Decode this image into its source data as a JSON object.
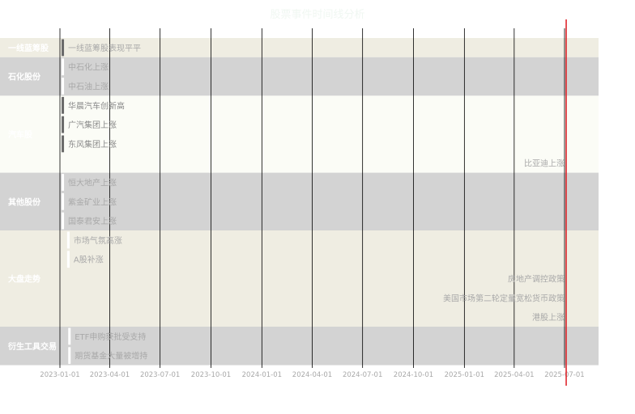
{
  "chart_data": {
    "type": "timeline",
    "title": "股票事件时间线分析",
    "x_range": [
      "2023-01-01",
      "2025-07-01"
    ],
    "x_ticks": [
      "2023-01-01",
      "2023-04-01",
      "2023-07-01",
      "2023-10-01",
      "2024-01-01",
      "2024-04-01",
      "2024-07-01",
      "2024-10-01",
      "2025-01-01",
      "2025-04-01",
      "2025-07-01"
    ],
    "current_date": "2025-07-04",
    "groups": [
      {
        "name": "一线蓝筹股",
        "band_color": "#efede2",
        "events": [
          {
            "label": "一线蓝筹股表现平平",
            "date": "2023-01-04"
          }
        ]
      },
      {
        "name": "石化股份",
        "band_color": "#d3d3d3",
        "events": [
          {
            "label": "中石化上涨",
            "date": "2023-01-04"
          },
          {
            "label": "中石油上涨",
            "date": "2023-01-04"
          }
        ]
      },
      {
        "name": "汽车股",
        "band_color": "#fbfcf6",
        "events": [
          {
            "label": "华晨汽车创新高",
            "date": "2023-01-04"
          },
          {
            "label": "广汽集团上涨",
            "date": "2023-01-04"
          },
          {
            "label": "东风集团上涨",
            "date": "2023-01-04"
          },
          {
            "label": "比亚迪上涨",
            "date": "2025-07-01"
          }
        ]
      },
      {
        "name": "其他股份",
        "band_color": "#d3d3d3",
        "events": [
          {
            "label": "恒大地产上涨",
            "date": "2023-01-04"
          },
          {
            "label": "紫金矿业上涨",
            "date": "2023-01-04"
          },
          {
            "label": "国泰君安上涨",
            "date": "2023-01-04"
          }
        ]
      },
      {
        "name": "大盘走势",
        "band_color": "#efede2",
        "events": [
          {
            "label": "市场气氛高涨",
            "date": "2023-01-14"
          },
          {
            "label": "A股补涨",
            "date": "2023-01-14"
          },
          {
            "label": "房地产调控政策",
            "date": "2025-07-01"
          },
          {
            "label": "美国市场第二轮定量宽松货币政策",
            "date": "2025-07-01"
          },
          {
            "label": "港股上涨",
            "date": "2025-07-01"
          }
        ]
      },
      {
        "name": "衍生工具交易",
        "band_color": "#d3d3d3",
        "events": [
          {
            "label": "ETF申购获批受支持",
            "date": "2023-01-16"
          },
          {
            "label": "期货基金大量被增持",
            "date": "2023-01-16"
          }
        ]
      }
    ],
    "grid": true,
    "colors": {
      "text_light": "#ffffff",
      "text_muted": "#a9a9a9",
      "marker": "#696969",
      "current_line": "#e0282e",
      "grid": "#000000"
    }
  }
}
